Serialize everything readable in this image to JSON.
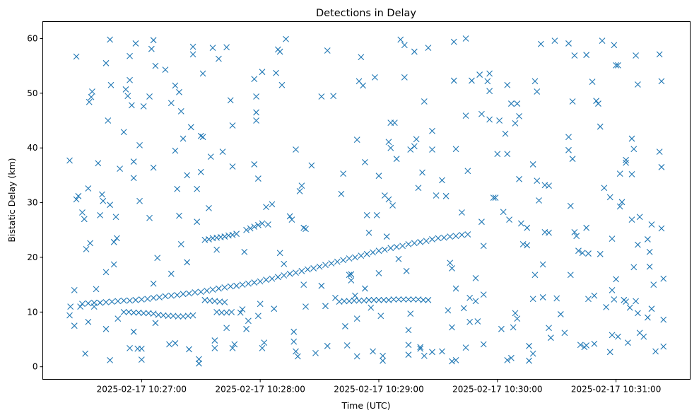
{
  "chart_data": {
    "type": "scatter",
    "title": "Detections in Delay",
    "xlabel": "Time (UTC)",
    "ylabel": "Bistatic Delay (km)",
    "x_unit": "seconds after 2025-02-17 10:26:00 UTC",
    "xlim": [
      10,
      337.5
    ],
    "ylim": [
      -2.3,
      63.1
    ],
    "x_ticks": [
      {
        "value": 60,
        "label": "2025-02-17 10:27:00"
      },
      {
        "value": 120,
        "label": "2025-02-17 10:28:00"
      },
      {
        "value": 180,
        "label": "2025-02-17 10:29:00"
      },
      {
        "value": 240,
        "label": "2025-02-17 10:30:00"
      },
      {
        "value": 300,
        "label": "2025-02-17 10:31:00"
      }
    ],
    "y_ticks": [
      0,
      10,
      20,
      30,
      40,
      50,
      60
    ],
    "marker": "x",
    "color": "#1f77b4",
    "grid": false,
    "tracks": [
      {
        "x_start": 30,
        "x_step": 3,
        "y": [
          11.5,
          11.6,
          11.7,
          11.7,
          11.8,
          11.9,
          12.0,
          12.1,
          12.1,
          12.2,
          12.3,
          12.4,
          12.6,
          12.7,
          12.9,
          13.0,
          13.1,
          13.3,
          13.4,
          13.6,
          13.7,
          13.9,
          14.1,
          14.3,
          14.5,
          14.7,
          14.8,
          15.0,
          15.2,
          15.4,
          15.6,
          15.9,
          16.1,
          16.4,
          16.7,
          17.0,
          17.2,
          17.5,
          17.8,
          18.0,
          18.3,
          18.6,
          18.9,
          19.2,
          19.5,
          19.8,
          20.0,
          20.3,
          20.6,
          20.9,
          21.2,
          21.4,
          21.7,
          21.9,
          22.1,
          22.4,
          22.6,
          22.8,
          23.0,
          23.3,
          23.5,
          23.6,
          23.8,
          23.9,
          24.1,
          24.2
        ]
      },
      {
        "x_start": 92,
        "x_step": 2,
        "y": [
          23.2,
          23.3,
          23.5,
          23.6,
          23.7,
          23.8,
          24.0,
          24.1,
          24.3
        ]
      },
      {
        "x_start": 113,
        "x_step": 2,
        "y": [
          25.0,
          25.3,
          25.6,
          25.9,
          26.2
        ]
      },
      {
        "x_start": 51,
        "x_step": 2.5,
        "y": [
          10.0,
          10.0,
          9.9,
          9.9,
          9.8,
          9.8,
          9.7,
          9.5,
          9.4,
          9.3,
          9.3,
          9.2,
          9.2,
          9.3,
          9.4
        ]
      },
      {
        "x_start": 160,
        "x_step": 2.5,
        "y": [
          11.9,
          12.0,
          12.0,
          12.1,
          12.1,
          12.1,
          12.2,
          12.2,
          12.2,
          12.2,
          12.2,
          12.3,
          12.3,
          12.3,
          12.3,
          12.3,
          12.3,
          12.2,
          12.2
        ]
      },
      {
        "x_start": 92,
        "x_step": 2.5,
        "y": [
          12.2,
          12.1,
          12.0,
          11.9,
          11.8
        ]
      },
      {
        "x_start": 98,
        "x_step": 2.5,
        "y": [
          10.0,
          9.9,
          9.9,
          10.0
        ]
      }
    ],
    "points": [
      [
        23.6,
        37.7
      ],
      [
        23.6,
        9.4
      ],
      [
        24,
        11
      ],
      [
        26,
        14
      ],
      [
        26,
        7.5
      ],
      [
        27,
        56.7
      ],
      [
        27,
        30.6
      ],
      [
        28,
        31.2
      ],
      [
        29,
        11
      ],
      [
        30,
        28.2
      ],
      [
        31,
        27
      ],
      [
        31.5,
        2.4
      ],
      [
        32,
        21.5
      ],
      [
        33,
        32.6
      ],
      [
        33,
        8.2
      ],
      [
        33.5,
        48.4
      ],
      [
        34,
        22.6
      ],
      [
        34.5,
        49.3
      ],
      [
        35,
        50.3
      ],
      [
        36,
        11
      ],
      [
        37,
        14.2
      ],
      [
        38,
        37.2
      ],
      [
        39,
        27.7
      ],
      [
        40,
        31.5
      ],
      [
        40.5,
        30.3
      ],
      [
        42,
        55.5
      ],
      [
        42,
        17.3
      ],
      [
        42,
        6.9
      ],
      [
        43,
        45
      ],
      [
        44,
        59.8
      ],
      [
        44,
        29.6
      ],
      [
        44,
        1.2
      ],
      [
        44.5,
        51.5
      ],
      [
        46,
        18.7
      ],
      [
        46,
        22.8
      ],
      [
        47,
        27.4
      ],
      [
        47.5,
        23.5
      ],
      [
        48,
        8.8
      ],
      [
        49,
        36.2
      ],
      [
        51,
        42.9
      ],
      [
        52,
        50.7
      ],
      [
        53,
        49.5
      ],
      [
        54,
        3.4
      ],
      [
        54,
        56.8
      ],
      [
        54,
        52.4
      ],
      [
        55,
        47.8
      ],
      [
        56,
        37.5
      ],
      [
        56,
        34.5
      ],
      [
        56,
        6.4
      ],
      [
        57,
        59.1
      ],
      [
        58,
        3.3
      ],
      [
        59,
        40.5
      ],
      [
        59,
        30.3
      ],
      [
        60,
        3.3
      ],
      [
        60,
        1.3
      ],
      [
        61,
        47.6
      ],
      [
        64,
        27.2
      ],
      [
        64,
        49.4
      ],
      [
        65,
        58.1
      ],
      [
        66,
        15.2
      ],
      [
        66,
        36.4
      ],
      [
        66,
        59.7
      ],
      [
        67,
        55
      ],
      [
        67,
        8
      ],
      [
        68,
        19.9
      ],
      [
        72,
        54.3
      ],
      [
        74,
        4.1
      ],
      [
        75,
        17
      ],
      [
        75,
        48.2
      ],
      [
        77,
        4.3
      ],
      [
        77,
        39.5
      ],
      [
        77,
        51.4
      ],
      [
        78,
        32.5
      ],
      [
        79,
        27.6
      ],
      [
        79,
        50.2
      ],
      [
        80,
        22.4
      ],
      [
        80,
        46.7
      ],
      [
        81,
        41.7
      ],
      [
        83,
        35
      ],
      [
        83,
        19.1
      ],
      [
        84,
        3.2
      ],
      [
        85,
        43.8
      ],
      [
        86,
        58.5
      ],
      [
        86,
        57.1
      ],
      [
        88,
        26.5
      ],
      [
        88,
        32.5
      ],
      [
        89,
        1.4
      ],
      [
        89,
        0.6
      ],
      [
        90,
        35.6
      ],
      [
        90,
        42.2
      ],
      [
        91,
        42
      ],
      [
        91,
        53.6
      ],
      [
        94,
        29
      ],
      [
        95,
        38.4
      ],
      [
        96,
        58.3
      ],
      [
        97,
        4.8
      ],
      [
        97,
        3.4
      ],
      [
        98,
        21.4
      ],
      [
        99,
        56.3
      ],
      [
        101,
        39.3
      ],
      [
        103,
        58.4
      ],
      [
        103,
        7.1
      ],
      [
        105,
        48.7
      ],
      [
        106,
        44.1
      ],
      [
        106,
        36.6
      ],
      [
        106,
        3.4
      ],
      [
        107,
        4.1
      ],
      [
        110,
        9.9
      ],
      [
        111,
        10.5
      ],
      [
        112,
        21
      ],
      [
        113,
        6.9
      ],
      [
        114,
        8.4
      ],
      [
        117,
        37
      ],
      [
        117,
        52.6
      ],
      [
        118,
        45
      ],
      [
        118,
        46.5
      ],
      [
        118,
        49.4
      ],
      [
        119,
        34.4
      ],
      [
        119,
        9.3
      ],
      [
        120,
        11.5
      ],
      [
        121,
        3.4
      ],
      [
        121,
        53.9
      ],
      [
        122,
        4.4
      ],
      [
        123,
        29.2
      ],
      [
        124,
        26
      ],
      [
        126,
        29.7
      ],
      [
        127,
        10.6
      ],
      [
        128,
        53.7
      ],
      [
        129,
        58
      ],
      [
        130,
        57.6
      ],
      [
        130,
        20.8
      ],
      [
        131,
        51.5
      ],
      [
        132,
        18.8
      ],
      [
        133,
        59.9
      ],
      [
        135,
        27.5
      ],
      [
        136,
        26.9
      ],
      [
        137,
        6.4
      ],
      [
        137,
        4.6
      ],
      [
        138,
        39.7
      ],
      [
        138,
        2.8
      ],
      [
        139,
        1.9
      ],
      [
        140,
        32.1
      ],
      [
        141,
        33.1
      ],
      [
        142,
        25.4
      ],
      [
        143,
        25.2
      ],
      [
        142,
        15
      ],
      [
        143,
        11
      ],
      [
        146,
        36.8
      ],
      [
        148,
        2.5
      ],
      [
        151,
        49.4
      ],
      [
        151,
        14.8
      ],
      [
        153,
        11.1
      ],
      [
        154,
        57.8
      ],
      [
        154,
        3.8
      ],
      [
        157,
        49.5
      ],
      [
        158,
        12.6
      ],
      [
        161,
        31.6
      ],
      [
        162,
        35.3
      ],
      [
        163,
        7.4
      ],
      [
        164,
        3.9
      ],
      [
        165,
        16.8
      ],
      [
        166,
        16.9
      ],
      [
        166,
        15.8
      ],
      [
        168,
        13
      ],
      [
        169,
        41.5
      ],
      [
        169,
        8.8
      ],
      [
        169,
        1.9
      ],
      [
        170,
        52.2
      ],
      [
        171,
        56.6
      ],
      [
        172,
        51.4
      ],
      [
        173,
        37.4
      ],
      [
        173,
        14.3
      ],
      [
        174,
        27.7
      ],
      [
        175,
        24.5
      ],
      [
        176,
        10.8
      ],
      [
        177,
        2.8
      ],
      [
        178,
        52.9
      ],
      [
        179,
        27.7
      ],
      [
        180,
        34.9
      ],
      [
        180,
        17.1
      ],
      [
        181,
        9.3
      ],
      [
        182,
        1.1
      ],
      [
        182,
        2
      ],
      [
        183,
        31.3
      ],
      [
        184,
        23.8
      ],
      [
        185,
        30.6
      ],
      [
        185,
        41.1
      ],
      [
        186,
        44.6
      ],
      [
        186,
        40
      ],
      [
        187,
        29.5
      ],
      [
        188,
        44.6
      ],
      [
        189,
        38
      ],
      [
        190,
        19.7
      ],
      [
        191,
        59.8
      ],
      [
        193,
        52.9
      ],
      [
        193,
        58.8
      ],
      [
        194,
        17.5
      ],
      [
        195,
        4
      ],
      [
        195,
        6.7
      ],
      [
        195,
        2.2
      ],
      [
        196,
        39.7
      ],
      [
        196,
        9.7
      ],
      [
        198,
        57.6
      ],
      [
        198,
        40.3
      ],
      [
        199,
        41.6
      ],
      [
        200,
        32.7
      ],
      [
        201,
        3.6
      ],
      [
        201,
        3.3
      ],
      [
        202,
        35.5
      ],
      [
        203,
        48.5
      ],
      [
        203,
        2
      ],
      [
        205,
        58.3
      ],
      [
        207,
        39.7
      ],
      [
        207,
        43.1
      ],
      [
        207,
        2.7
      ],
      [
        209,
        31.3
      ],
      [
        212,
        34.1
      ],
      [
        212,
        2.8
      ],
      [
        214,
        31.2
      ],
      [
        215,
        10.3
      ],
      [
        216,
        19
      ],
      [
        217,
        7.2
      ],
      [
        217,
        18
      ],
      [
        217,
        1
      ],
      [
        218,
        59.4
      ],
      [
        218,
        52.3
      ],
      [
        219,
        39.8
      ],
      [
        219,
        1.2
      ],
      [
        219,
        14.3
      ],
      [
        222,
        28.2
      ],
      [
        223,
        10.7
      ],
      [
        224,
        60
      ],
      [
        224,
        45.9
      ],
      [
        224,
        3.5
      ],
      [
        225,
        35.8
      ],
      [
        226,
        12.6
      ],
      [
        226,
        8.2
      ],
      [
        227,
        52.3
      ],
      [
        229,
        16.2
      ],
      [
        229,
        12
      ],
      [
        230,
        8.3
      ],
      [
        231,
        53.4
      ],
      [
        232,
        26.5
      ],
      [
        232,
        46.2
      ],
      [
        233,
        4.1
      ],
      [
        233,
        13.2
      ],
      [
        233,
        22.1
      ],
      [
        235,
        52.2
      ],
      [
        236,
        50.4
      ],
      [
        236,
        53.6
      ],
      [
        236,
        45.2
      ],
      [
        238,
        30.9
      ],
      [
        239,
        30.9
      ],
      [
        240,
        38.9
      ],
      [
        241,
        45
      ],
      [
        242,
        6.9
      ],
      [
        243,
        28.3
      ],
      [
        244,
        42.6
      ],
      [
        245,
        51.5
      ],
      [
        245,
        38.9
      ],
      [
        245,
        1.2
      ],
      [
        246,
        26.9
      ],
      [
        247,
        1.6
      ],
      [
        247,
        48.1
      ],
      [
        248,
        7.2
      ],
      [
        249,
        44.5
      ],
      [
        249,
        9.8
      ],
      [
        250,
        8.8
      ],
      [
        250,
        48.1
      ],
      [
        251,
        45.8
      ],
      [
        251,
        34.3
      ],
      [
        252,
        26.2
      ],
      [
        253,
        22.4
      ],
      [
        255,
        25.4
      ],
      [
        255,
        22.2
      ],
      [
        256,
        3.8
      ],
      [
        256,
        1.1
      ],
      [
        258,
        37
      ],
      [
        258,
        12.4
      ],
      [
        258,
        2.4
      ],
      [
        259,
        16.8
      ],
      [
        259,
        52.2
      ],
      [
        260,
        50.3
      ],
      [
        260,
        34
      ],
      [
        261,
        30.4
      ],
      [
        262,
        59
      ],
      [
        263,
        18.7
      ],
      [
        263,
        12.7
      ],
      [
        264,
        33.2
      ],
      [
        264,
        24.6
      ],
      [
        266,
        24.5
      ],
      [
        266,
        33.1
      ],
      [
        266,
        7.1
      ],
      [
        267,
        5.3
      ],
      [
        269,
        59.6
      ],
      [
        270,
        12.5
      ],
      [
        272,
        9.6
      ],
      [
        274,
        6.2
      ],
      [
        276,
        59.1
      ],
      [
        276,
        42
      ],
      [
        276,
        39.6
      ],
      [
        277,
        29.4
      ],
      [
        277,
        16.8
      ],
      [
        278,
        38
      ],
      [
        278,
        48.5
      ],
      [
        279,
        24.6
      ],
      [
        279,
        56.9
      ],
      [
        280,
        23.9
      ],
      [
        281,
        21.2
      ],
      [
        282,
        4
      ],
      [
        283,
        20.8
      ],
      [
        284,
        3.6
      ],
      [
        285,
        57
      ],
      [
        285,
        3.9
      ],
      [
        285,
        25.4
      ],
      [
        286,
        20.7
      ],
      [
        286,
        12.4
      ],
      [
        288,
        52.1
      ],
      [
        289,
        13
      ],
      [
        289,
        4.2
      ],
      [
        290,
        48.6
      ],
      [
        291,
        48.1
      ],
      [
        292,
        43.9
      ],
      [
        292,
        20.6
      ],
      [
        293,
        59.6
      ],
      [
        294,
        32.7
      ],
      [
        295,
        10.9
      ],
      [
        297,
        31
      ],
      [
        297,
        2.7
      ],
      [
        298,
        14
      ],
      [
        298,
        5.8
      ],
      [
        298,
        23.4
      ],
      [
        299,
        58.8
      ],
      [
        299,
        12.3
      ],
      [
        300,
        55.1
      ],
      [
        300,
        16
      ],
      [
        301,
        5.5
      ],
      [
        301,
        55.1
      ],
      [
        302,
        29.3
      ],
      [
        302,
        35.3
      ],
      [
        303,
        30.1
      ],
      [
        304,
        12.2
      ],
      [
        305,
        37.3
      ],
      [
        305,
        37.8
      ],
      [
        305,
        11.9
      ],
      [
        306,
        4.4
      ],
      [
        307,
        10.8
      ],
      [
        308,
        26.9
      ],
      [
        308,
        35.2
      ],
      [
        308,
        41.7
      ],
      [
        309,
        18.2
      ],
      [
        309,
        39.8
      ],
      [
        310,
        56.9
      ],
      [
        310,
        12
      ],
      [
        311,
        22.3
      ],
      [
        311,
        9.8
      ],
      [
        311,
        51.6
      ],
      [
        312,
        27.4
      ],
      [
        312,
        6.2
      ],
      [
        314,
        5.5
      ],
      [
        316,
        23.3
      ],
      [
        316,
        9
      ],
      [
        317,
        21
      ],
      [
        317,
        18.3
      ],
      [
        318,
        10.6
      ],
      [
        318,
        26
      ],
      [
        319,
        15
      ],
      [
        320,
        2.8
      ],
      [
        322,
        57.1
      ],
      [
        322,
        39.3
      ],
      [
        323,
        52.2
      ],
      [
        323,
        36.5
      ],
      [
        323,
        25.3
      ],
      [
        324,
        8.6
      ],
      [
        324,
        3.7
      ],
      [
        324,
        16.1
      ]
    ]
  }
}
